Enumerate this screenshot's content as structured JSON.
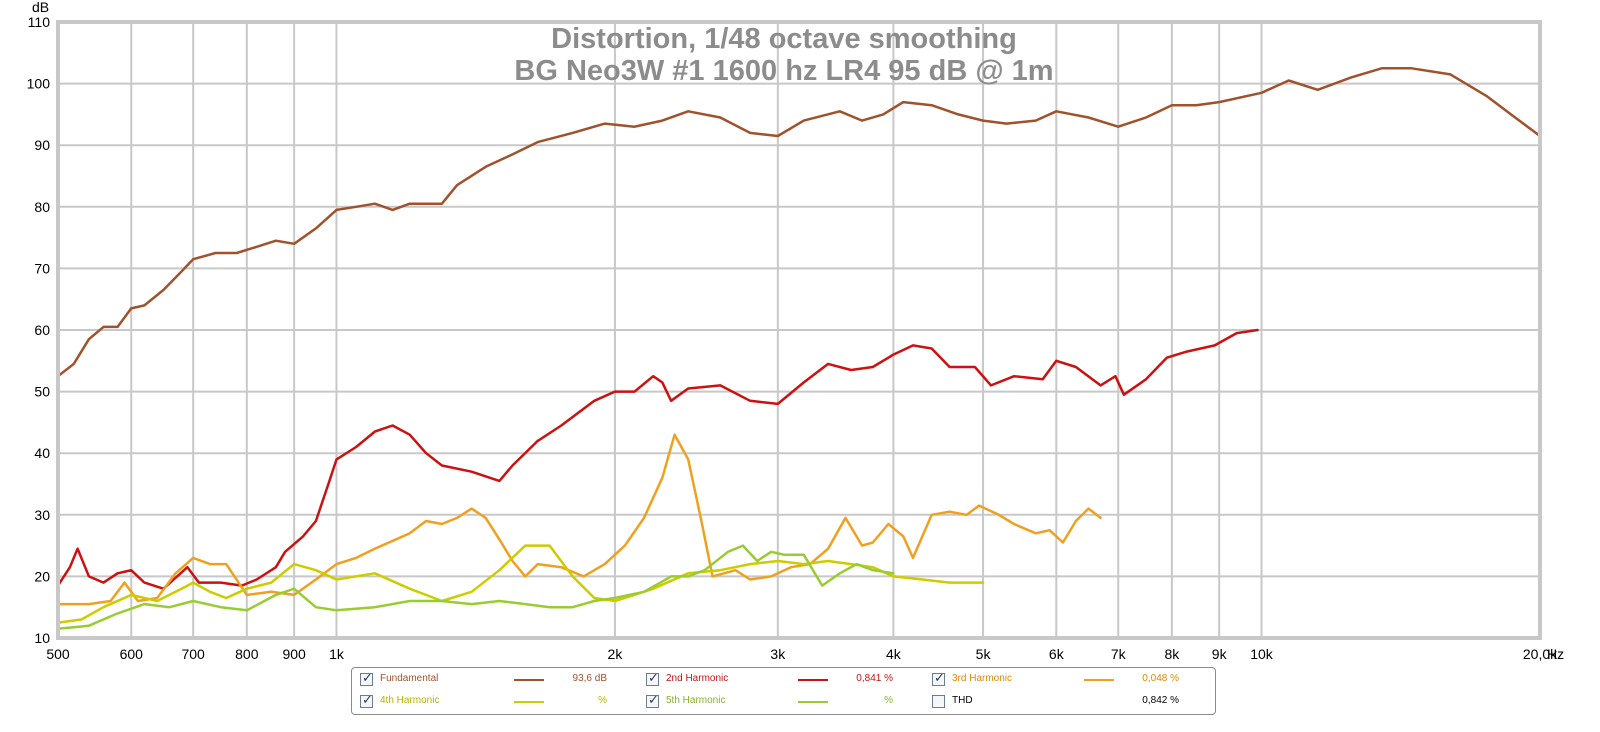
{
  "chart_data": {
    "type": "line",
    "title": "Distortion, 1/48 octave smoothing",
    "subtitle": "BG Neo3W #1 1600 hz LR4 95 dB @ 1m",
    "ylabel": "dB",
    "xunit": "Hz",
    "xscale": "log",
    "xlim": [
      500,
      20000
    ],
    "ylim": [
      10,
      110
    ],
    "grid": true,
    "legend_placement": "bottom",
    "yticks": [
      "10",
      "20",
      "30",
      "40",
      "50",
      "60",
      "70",
      "80",
      "90",
      "100",
      "110"
    ],
    "xticks": [
      {
        "v": 500,
        "label": "500"
      },
      {
        "v": 600,
        "label": "600"
      },
      {
        "v": 700,
        "label": "700"
      },
      {
        "v": 800,
        "label": "800"
      },
      {
        "v": 900,
        "label": "900"
      },
      {
        "v": 1000,
        "label": "1k"
      },
      {
        "v": 2000,
        "label": "2k"
      },
      {
        "v": 3000,
        "label": "3k"
      },
      {
        "v": 4000,
        "label": "4k"
      },
      {
        "v": 5000,
        "label": "5k"
      },
      {
        "v": 6000,
        "label": "6k"
      },
      {
        "v": 7000,
        "label": "7k"
      },
      {
        "v": 8000,
        "label": "8k"
      },
      {
        "v": 9000,
        "label": "9k"
      },
      {
        "v": 10000,
        "label": "10k"
      },
      {
        "v": 20000,
        "label": "20,0k"
      }
    ],
    "series": [
      {
        "name": "Fundamental",
        "color": "#a0522d",
        "points": [
          [
            500,
            52.5
          ],
          [
            520,
            54.5
          ],
          [
            540,
            58.5
          ],
          [
            560,
            60.5
          ],
          [
            580,
            60.5
          ],
          [
            600,
            63.5
          ],
          [
            620,
            64
          ],
          [
            650,
            66.5
          ],
          [
            680,
            69.5
          ],
          [
            700,
            71.5
          ],
          [
            740,
            72.5
          ],
          [
            780,
            72.5
          ],
          [
            820,
            73.5
          ],
          [
            860,
            74.5
          ],
          [
            900,
            74
          ],
          [
            950,
            76.5
          ],
          [
            1000,
            79.5
          ],
          [
            1050,
            80
          ],
          [
            1100,
            80.5
          ],
          [
            1150,
            79.5
          ],
          [
            1200,
            80.5
          ],
          [
            1300,
            80.5
          ],
          [
            1350,
            83.5
          ],
          [
            1450,
            86.5
          ],
          [
            1550,
            88.5
          ],
          [
            1650,
            90.5
          ],
          [
            1800,
            92
          ],
          [
            1950,
            93.5
          ],
          [
            2100,
            93
          ],
          [
            2250,
            94
          ],
          [
            2400,
            95.5
          ],
          [
            2600,
            94.5
          ],
          [
            2800,
            92
          ],
          [
            3000,
            91.5
          ],
          [
            3200,
            94
          ],
          [
            3500,
            95.5
          ],
          [
            3700,
            94
          ],
          [
            3900,
            95
          ],
          [
            4100,
            97
          ],
          [
            4400,
            96.5
          ],
          [
            4700,
            95
          ],
          [
            5000,
            94
          ],
          [
            5300,
            93.5
          ],
          [
            5700,
            94
          ],
          [
            6000,
            95.5
          ],
          [
            6500,
            94.5
          ],
          [
            7000,
            93
          ],
          [
            7500,
            94.5
          ],
          [
            8000,
            96.5
          ],
          [
            8500,
            96.5
          ],
          [
            9000,
            97
          ],
          [
            10000,
            98.5
          ],
          [
            10700,
            100.5
          ],
          [
            11500,
            99
          ],
          [
            12500,
            101
          ],
          [
            13500,
            102.5
          ],
          [
            14500,
            102.5
          ],
          [
            16000,
            101.5
          ],
          [
            17500,
            98
          ],
          [
            18800,
            94.5
          ],
          [
            20000,
            91.5
          ]
        ]
      },
      {
        "name": "2nd Harmonic",
        "color": "#cc1111",
        "points": [
          [
            500,
            18.5
          ],
          [
            515,
            21.5
          ],
          [
            525,
            24.5
          ],
          [
            540,
            20
          ],
          [
            560,
            19
          ],
          [
            580,
            20.5
          ],
          [
            600,
            21
          ],
          [
            620,
            19
          ],
          [
            650,
            18
          ],
          [
            690,
            21.5
          ],
          [
            710,
            19
          ],
          [
            750,
            19
          ],
          [
            790,
            18.5
          ],
          [
            820,
            19.5
          ],
          [
            860,
            21.5
          ],
          [
            880,
            24
          ],
          [
            920,
            26.5
          ],
          [
            950,
            29
          ],
          [
            980,
            35
          ],
          [
            1000,
            39
          ],
          [
            1050,
            41
          ],
          [
            1100,
            43.5
          ],
          [
            1150,
            44.5
          ],
          [
            1200,
            43
          ],
          [
            1250,
            40
          ],
          [
            1300,
            38
          ],
          [
            1400,
            37
          ],
          [
            1500,
            35.5
          ],
          [
            1550,
            38
          ],
          [
            1650,
            42
          ],
          [
            1750,
            44.5
          ],
          [
            1900,
            48.5
          ],
          [
            2000,
            50
          ],
          [
            2100,
            50
          ],
          [
            2200,
            52.5
          ],
          [
            2250,
            51.5
          ],
          [
            2300,
            48.5
          ],
          [
            2400,
            50.5
          ],
          [
            2600,
            51
          ],
          [
            2800,
            48.5
          ],
          [
            3000,
            48
          ],
          [
            3200,
            51.5
          ],
          [
            3400,
            54.5
          ],
          [
            3600,
            53.5
          ],
          [
            3800,
            54
          ],
          [
            4000,
            56
          ],
          [
            4200,
            57.5
          ],
          [
            4400,
            57
          ],
          [
            4600,
            54
          ],
          [
            4900,
            54
          ],
          [
            5100,
            51
          ],
          [
            5400,
            52.5
          ],
          [
            5800,
            52
          ],
          [
            6000,
            55
          ],
          [
            6300,
            54
          ],
          [
            6700,
            51
          ],
          [
            6950,
            52.5
          ],
          [
            7100,
            49.5
          ],
          [
            7500,
            52
          ],
          [
            7900,
            55.5
          ],
          [
            8300,
            56.5
          ],
          [
            8900,
            57.5
          ],
          [
            9400,
            59.5
          ],
          [
            9900,
            60
          ]
        ]
      },
      {
        "name": "3rd Harmonic",
        "color": "#f0a020",
        "points": [
          [
            500,
            15.5
          ],
          [
            540,
            15.5
          ],
          [
            570,
            16
          ],
          [
            590,
            19
          ],
          [
            610,
            16
          ],
          [
            640,
            16.5
          ],
          [
            670,
            20.5
          ],
          [
            700,
            23
          ],
          [
            730,
            22
          ],
          [
            760,
            22
          ],
          [
            800,
            17
          ],
          [
            850,
            17.5
          ],
          [
            900,
            17
          ],
          [
            950,
            19.5
          ],
          [
            1000,
            22
          ],
          [
            1050,
            23
          ],
          [
            1100,
            24.5
          ],
          [
            1200,
            27
          ],
          [
            1250,
            29
          ],
          [
            1300,
            28.5
          ],
          [
            1350,
            29.5
          ],
          [
            1400,
            31
          ],
          [
            1450,
            29.5
          ],
          [
            1500,
            26
          ],
          [
            1550,
            22.5
          ],
          [
            1600,
            20
          ],
          [
            1650,
            22
          ],
          [
            1750,
            21.5
          ],
          [
            1850,
            20
          ],
          [
            1950,
            22
          ],
          [
            2050,
            25
          ],
          [
            2150,
            29.5
          ],
          [
            2250,
            36
          ],
          [
            2320,
            43
          ],
          [
            2400,
            39
          ],
          [
            2480,
            29
          ],
          [
            2550,
            20
          ],
          [
            2700,
            21
          ],
          [
            2800,
            19.5
          ],
          [
            2950,
            20
          ],
          [
            3100,
            21.5
          ],
          [
            3250,
            22
          ],
          [
            3400,
            24.5
          ],
          [
            3550,
            29.5
          ],
          [
            3700,
            25
          ],
          [
            3800,
            25.5
          ],
          [
            3950,
            28.5
          ],
          [
            4100,
            26.5
          ],
          [
            4200,
            23
          ],
          [
            4400,
            30
          ],
          [
            4600,
            30.5
          ],
          [
            4800,
            30
          ],
          [
            4950,
            31.5
          ],
          [
            5200,
            30
          ],
          [
            5400,
            28.5
          ],
          [
            5700,
            27
          ],
          [
            5900,
            27.5
          ],
          [
            6100,
            25.5
          ],
          [
            6300,
            29
          ],
          [
            6500,
            31
          ],
          [
            6700,
            29.5
          ]
        ]
      },
      {
        "name": "4th Harmonic",
        "color": "#cccc00",
        "points": [
          [
            500,
            12.5
          ],
          [
            530,
            13
          ],
          [
            560,
            15
          ],
          [
            600,
            17
          ],
          [
            640,
            16
          ],
          [
            680,
            18
          ],
          [
            700,
            19
          ],
          [
            730,
            17.5
          ],
          [
            760,
            16.5
          ],
          [
            800,
            18
          ],
          [
            850,
            19
          ],
          [
            900,
            22
          ],
          [
            950,
            21
          ],
          [
            1000,
            19.5
          ],
          [
            1100,
            20.5
          ],
          [
            1200,
            18
          ],
          [
            1300,
            16
          ],
          [
            1400,
            17.5
          ],
          [
            1500,
            21
          ],
          [
            1600,
            25
          ],
          [
            1700,
            25
          ],
          [
            1800,
            20
          ],
          [
            1900,
            16.5
          ],
          [
            2000,
            16
          ],
          [
            2100,
            17
          ],
          [
            2200,
            18
          ],
          [
            2400,
            20.5
          ],
          [
            2600,
            21
          ],
          [
            2800,
            22
          ],
          [
            3000,
            22.5
          ],
          [
            3200,
            22
          ],
          [
            3400,
            22.5
          ],
          [
            3600,
            22
          ],
          [
            3800,
            21.5
          ],
          [
            4000,
            20
          ],
          [
            4300,
            19.5
          ],
          [
            4600,
            19
          ],
          [
            5000,
            19
          ]
        ]
      },
      {
        "name": "5th Harmonic",
        "color": "#99cc33",
        "points": [
          [
            500,
            11.5
          ],
          [
            540,
            12
          ],
          [
            580,
            14
          ],
          [
            620,
            15.5
          ],
          [
            660,
            15
          ],
          [
            700,
            16
          ],
          [
            750,
            15
          ],
          [
            800,
            14.5
          ],
          [
            860,
            17
          ],
          [
            900,
            18
          ],
          [
            950,
            15
          ],
          [
            1000,
            14.5
          ],
          [
            1100,
            15
          ],
          [
            1200,
            16
          ],
          [
            1300,
            16
          ],
          [
            1400,
            15.5
          ],
          [
            1500,
            16
          ],
          [
            1600,
            15.5
          ],
          [
            1700,
            15
          ],
          [
            1800,
            15
          ],
          [
            1900,
            16
          ],
          [
            2000,
            16.5
          ],
          [
            2150,
            17.5
          ],
          [
            2300,
            20
          ],
          [
            2400,
            20
          ],
          [
            2500,
            21
          ],
          [
            2650,
            24
          ],
          [
            2750,
            25
          ],
          [
            2850,
            22.5
          ],
          [
            2950,
            24
          ],
          [
            3050,
            23.5
          ],
          [
            3200,
            23.5
          ],
          [
            3350,
            18.5
          ],
          [
            3500,
            20.5
          ],
          [
            3650,
            22
          ],
          [
            3800,
            21
          ],
          [
            4000,
            20.5
          ]
        ]
      }
    ]
  },
  "legend": [
    {
      "label": "Fundamental",
      "value": "93,6 dB",
      "color": "#a0522d",
      "label_color": "#a0522d",
      "value_color": "#a0522d",
      "checked": true,
      "check": "✓"
    },
    {
      "label": "2nd Harmonic",
      "value": "0,841 %",
      "color": "#cc1111",
      "label_color": "#cc1111",
      "value_color": "#cc1111",
      "checked": true,
      "check": "✓"
    },
    {
      "label": "3rd Harmonic",
      "value": "0,048 %",
      "color": "#e08800",
      "label_color": "#e08800",
      "value_color": "#e08800",
      "checked": true,
      "check": "✓"
    },
    {
      "label": "4th Harmonic",
      "value": "%",
      "color": "#cccc00",
      "label_color": "#b5b500",
      "value_color": "#b5b500",
      "checked": true,
      "check": "✓"
    },
    {
      "label": "5th Harmonic",
      "value": "%",
      "color": "#99cc33",
      "label_color": "#86b42a",
      "value_color": "#86b42a",
      "checked": true,
      "check": "✓"
    },
    {
      "label": "THD",
      "value": "0,842 %",
      "color": "",
      "label_color": "#000000",
      "value_color": "#000000",
      "checked": false,
      "check": ""
    }
  ]
}
